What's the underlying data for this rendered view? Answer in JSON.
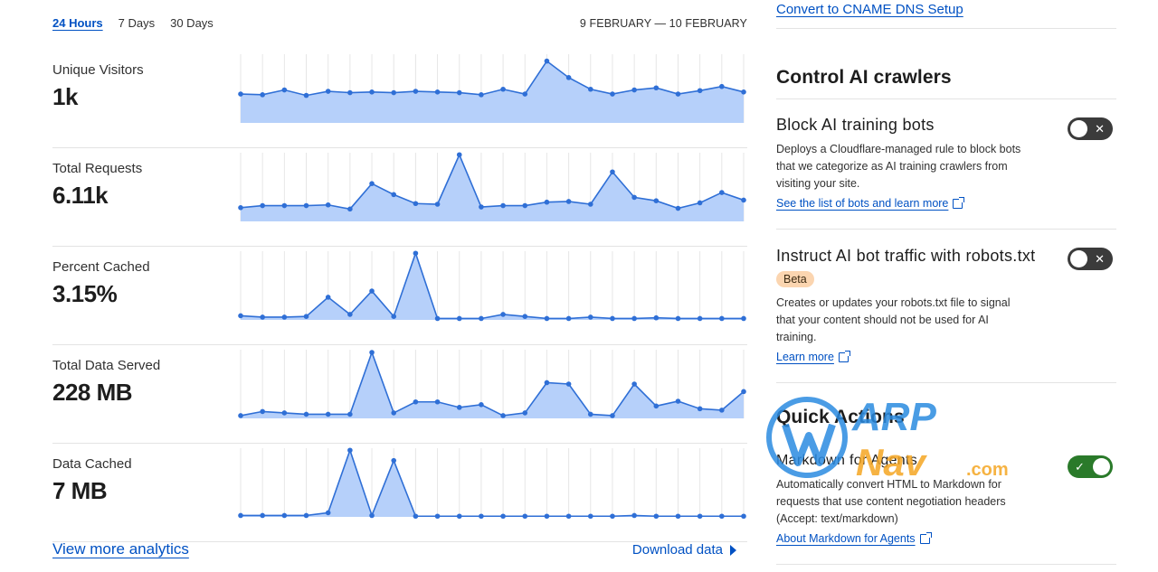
{
  "analytics": {
    "ranges": [
      "24 Hours",
      "7 Days",
      "30 Days"
    ],
    "active_range": "24 Hours",
    "date_range": "9 FEBRUARY — 10 FEBRUARY",
    "metrics": [
      {
        "label": "Unique Visitors",
        "value": "1k",
        "series": [
          42,
          41,
          48,
          40,
          46,
          44,
          45,
          44,
          46,
          45,
          44,
          41,
          49,
          42,
          90,
          66,
          49,
          42,
          48,
          51,
          42,
          47,
          53,
          45
        ]
      },
      {
        "label": "Total Requests",
        "value": "6.11k",
        "series": [
          20,
          23,
          23,
          23,
          24,
          18,
          55,
          39,
          26,
          25,
          97,
          21,
          23,
          23,
          28,
          29,
          25,
          72,
          35,
          30,
          19,
          27,
          42,
          31
        ]
      },
      {
        "label": "Percent Cached",
        "value": "3.15%",
        "series": [
          6,
          4,
          4,
          5,
          33,
          8,
          42,
          5,
          97,
          2,
          2,
          2,
          8,
          5,
          2,
          2,
          4,
          2,
          2,
          3,
          2,
          2,
          2,
          2
        ]
      },
      {
        "label": "Total Data Served",
        "value": "228 MB",
        "series": [
          4,
          10,
          8,
          6,
          6,
          6,
          96,
          8,
          24,
          24,
          16,
          20,
          4,
          8,
          52,
          50,
          6,
          4,
          50,
          18,
          25,
          14,
          12,
          39
        ]
      },
      {
        "label": "Data Cached",
        "value": "7 MB",
        "series": [
          2,
          2,
          2,
          2,
          6,
          97,
          2,
          82,
          1,
          1,
          1,
          1,
          1,
          1,
          1,
          1,
          1,
          1,
          2,
          1,
          1,
          1,
          1,
          1
        ]
      }
    ],
    "view_more_label": "View more analytics",
    "download_label": "Download data",
    "colors": {
      "line": "#2f6fd6",
      "area": "#b6d0fa",
      "grid": "#e6e6e6"
    }
  },
  "right_panel": {
    "cname_link": "Convert to CNAME DNS Setup",
    "crawlers_title": "Control AI crawlers",
    "block_bots": {
      "title": "Block AI training bots",
      "description": "Deploys a Cloudflare-managed rule to block bots that we categorize as AI training crawlers from visiting your site.",
      "link": "See the list of bots and learn more",
      "toggle": "off",
      "toggle_mark": "✕"
    },
    "robots": {
      "title": "Instruct AI bot traffic with robots.txt",
      "badge": "Beta",
      "description": "Creates or updates your robots.txt file to signal that your content should not be used for AI training.",
      "link": "Learn more",
      "toggle": "off",
      "toggle_mark": "✕"
    },
    "quick_actions_title": "Quick Actions",
    "markdown": {
      "title": "Markdown for Agents",
      "description": "Automatically convert HTML to Markdown for requests that use content negotiation headers (Accept: text/markdown)",
      "link": "About Markdown for Agents",
      "toggle": "on",
      "toggle_mark": "✓"
    }
  },
  "watermark": {
    "line1": "WARP",
    "line2": "Nav",
    "suffix": ".com",
    "colors": {
      "blue": "#2a8be0",
      "orange": "#f5a623"
    }
  }
}
